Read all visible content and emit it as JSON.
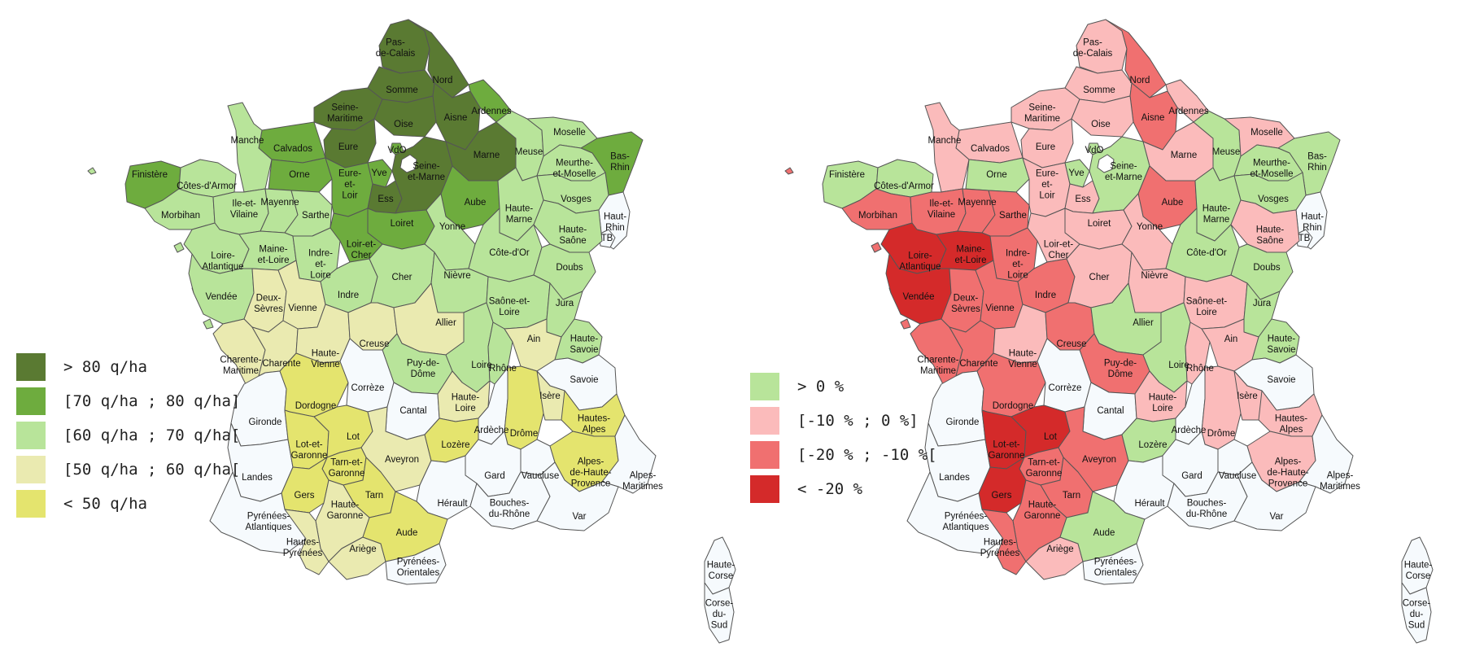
{
  "maps": [
    {
      "id": "yield",
      "legend": [
        {
          "key": "c1",
          "label": "> 80 q/ha",
          "color": "#5a7a32"
        },
        {
          "key": "c2",
          "label": "[70 q/ha ; 80 q/ha]",
          "color": "#6eac3e"
        },
        {
          "key": "c3",
          "label": "[60 q/ha ; 70 q/ha[",
          "color": "#b8e49a"
        },
        {
          "key": "c4",
          "label": "[50 q/ha ; 60 q/ha[",
          "color": "#eaeab0"
        },
        {
          "key": "c5",
          "label": "< 50 q/ha",
          "color": "#e4e46e"
        }
      ],
      "no_data_color": "#f6fafd"
    },
    {
      "id": "change",
      "legend": [
        {
          "key": "c1",
          "label": "> 0 %",
          "color": "#b8e49a"
        },
        {
          "key": "c2",
          "label": "[-10 % ; 0 %]",
          "color": "#fbbbbb"
        },
        {
          "key": "c3",
          "label": "[-20 % ; -10 %[",
          "color": "#f07070"
        },
        {
          "key": "c4",
          "label": "< -20 %",
          "color": "#d42a2a"
        }
      ],
      "no_data_color": "#f6fafd"
    }
  ],
  "departments": [
    {
      "id": "pdc",
      "name": [
        "Pas-",
        "de-Calais"
      ],
      "a": "c1",
      "b": "c2"
    },
    {
      "id": "nord",
      "name": [
        "Nord"
      ],
      "a": "c1",
      "b": "c3"
    },
    {
      "id": "somme",
      "name": [
        "Somme"
      ],
      "a": "c1",
      "b": "c2"
    },
    {
      "id": "aisne",
      "name": [
        "Aisne"
      ],
      "a": "c1",
      "b": "c3"
    },
    {
      "id": "ardennes",
      "name": [
        "Ardennes"
      ],
      "a": "c2",
      "b": "c2"
    },
    {
      "id": "seinemar",
      "name": [
        "Seine-",
        "Maritime"
      ],
      "a": "c1",
      "b": "c2"
    },
    {
      "id": "oise",
      "name": [
        "Oise"
      ],
      "a": "c1",
      "b": "c2"
    },
    {
      "id": "eure",
      "name": [
        "Eure"
      ],
      "a": "c1",
      "b": "c2"
    },
    {
      "id": "calvados",
      "name": [
        "Calvados"
      ],
      "a": "c2",
      "b": "c2"
    },
    {
      "id": "manche",
      "name": [
        "Manche"
      ],
      "a": "c3",
      "b": "c2"
    },
    {
      "id": "orne",
      "name": [
        "Orne"
      ],
      "a": "c2",
      "b": "c1"
    },
    {
      "id": "marne",
      "name": [
        "Marne"
      ],
      "a": "c1",
      "b": "c2"
    },
    {
      "id": "meuse",
      "name": [
        "Meuse"
      ],
      "a": "c3",
      "b": "c1"
    },
    {
      "id": "moselle",
      "name": [
        "Moselle"
      ],
      "a": "c3",
      "b": "c2"
    },
    {
      "id": "basrhin",
      "name": [
        "Bas-",
        "Rhin"
      ],
      "a": "c2",
      "b": "c1"
    },
    {
      "id": "mm",
      "name": [
        "Meurthe-",
        "et-Moselle"
      ],
      "a": "c3",
      "b": "c1"
    },
    {
      "id": "vosges",
      "name": [
        "Vosges"
      ],
      "a": "c3",
      "b": "c1"
    },
    {
      "id": "hautrhin",
      "name": [
        "Haut-",
        "Rhin"
      ],
      "a": "nd",
      "b": "nd"
    },
    {
      "id": "tb",
      "name": [
        "TB"
      ],
      "a": "nd",
      "b": "nd"
    },
    {
      "id": "finistere",
      "name": [
        "Finistère"
      ],
      "a": "c2",
      "b": "c1"
    },
    {
      "id": "cotes",
      "name": [
        "Côtes-d'Armor"
      ],
      "a": "c3",
      "b": "c1"
    },
    {
      "id": "morbihan",
      "name": [
        "Morbihan"
      ],
      "a": "c3",
      "b": "c3"
    },
    {
      "id": "ille",
      "name": [
        "Ile-et-",
        "Vilaine"
      ],
      "a": "c3",
      "b": "c3"
    },
    {
      "id": "mayenne",
      "name": [
        "Mayenne"
      ],
      "a": "c3",
      "b": "c3"
    },
    {
      "id": "sarthe",
      "name": [
        "Sarthe"
      ],
      "a": "c3",
      "b": "c3"
    },
    {
      "id": "eureloir",
      "name": [
        "Eure-",
        "et-",
        "Loir"
      ],
      "a": "c2",
      "b": "c2"
    },
    {
      "id": "yve",
      "name": [
        "Yve"
      ],
      "a": "c2",
      "b": "c1"
    },
    {
      "id": "vdo",
      "name": [
        "VdO"
      ],
      "a": "c2",
      "b": "c1"
    },
    {
      "id": "ess",
      "name": [
        "Ess"
      ],
      "a": "c1",
      "b": "c2"
    },
    {
      "id": "sem",
      "name": [
        "Seine-",
        "et-Marne"
      ],
      "a": "c1",
      "b": "c1"
    },
    {
      "id": "aube",
      "name": [
        "Aube"
      ],
      "a": "c2",
      "b": "c3"
    },
    {
      "id": "hmarne",
      "name": [
        "Haute-",
        "Marne"
      ],
      "a": "c3",
      "b": "c1"
    },
    {
      "id": "hsaone",
      "name": [
        "Haute-",
        "Saône"
      ],
      "a": "c3",
      "b": "c2"
    },
    {
      "id": "loireatl",
      "name": [
        "Loire-",
        "Atlantique"
      ],
      "a": "c3",
      "b": "c4"
    },
    {
      "id": "mel",
      "name": [
        "Maine-",
        "et-Loire"
      ],
      "a": "c3",
      "b": "c4"
    },
    {
      "id": "il",
      "name": [
        "Indre-",
        "et-",
        "Loire"
      ],
      "a": "c3",
      "b": "c3"
    },
    {
      "id": "loiret",
      "name": [
        "Loiret"
      ],
      "a": "c2",
      "b": "c2"
    },
    {
      "id": "lec",
      "name": [
        "Loir-et-",
        "Cher"
      ],
      "a": "c2",
      "b": "c2"
    },
    {
      "id": "yonne",
      "name": [
        "Yonne"
      ],
      "a": "c3",
      "b": "c2"
    },
    {
      "id": "cotedor",
      "name": [
        "Côte-d'Or"
      ],
      "a": "c3",
      "b": "c1"
    },
    {
      "id": "doubs",
      "name": [
        "Doubs"
      ],
      "a": "c3",
      "b": "c1"
    },
    {
      "id": "vendee",
      "name": [
        "Vendée"
      ],
      "a": "c3",
      "b": "c4"
    },
    {
      "id": "deuxsev",
      "name": [
        "Deux-",
        "Sèvres"
      ],
      "a": "c4",
      "b": "c3"
    },
    {
      "id": "vienne",
      "name": [
        "Vienne"
      ],
      "a": "c4",
      "b": "c3"
    },
    {
      "id": "indre",
      "name": [
        "Indre"
      ],
      "a": "c3",
      "b": "c3"
    },
    {
      "id": "cher",
      "name": [
        "Cher"
      ],
      "a": "c3",
      "b": "c2"
    },
    {
      "id": "nievre",
      "name": [
        "Nièvre"
      ],
      "a": "c3",
      "b": "c2"
    },
    {
      "id": "sel",
      "name": [
        "Saône-et-",
        "Loire"
      ],
      "a": "c3",
      "b": "c2"
    },
    {
      "id": "jura",
      "name": [
        "Jura"
      ],
      "a": "c3",
      "b": "c1"
    },
    {
      "id": "charmar",
      "name": [
        "Charente-",
        "Maritime"
      ],
      "a": "c4",
      "b": "c3"
    },
    {
      "id": "charente",
      "name": [
        "Charente"
      ],
      "a": "c4",
      "b": "c3"
    },
    {
      "id": "hvienne",
      "name": [
        "Haute-",
        "Vienne"
      ],
      "a": "c4",
      "b": "c2"
    },
    {
      "id": "creuse",
      "name": [
        "Creuse"
      ],
      "a": "c4",
      "b": "c3"
    },
    {
      "id": "allier",
      "name": [
        "Allier"
      ],
      "a": "c4",
      "b": "c1"
    },
    {
      "id": "pdd",
      "name": [
        "Puy-de-",
        "Dôme"
      ],
      "a": "c3",
      "b": "c3"
    },
    {
      "id": "loire",
      "name": [
        "Loire"
      ],
      "a": "c3",
      "b": "c1"
    },
    {
      "id": "rhone",
      "name": [
        "Rhône"
      ],
      "a": "c3",
      "b": "c2"
    },
    {
      "id": "ain",
      "name": [
        "Ain"
      ],
      "a": "c4",
      "b": "c2"
    },
    {
      "id": "hsavoie",
      "name": [
        "Haute-",
        "Savoie"
      ],
      "a": "c3",
      "b": "c1"
    },
    {
      "id": "savoie",
      "name": [
        "Savoie"
      ],
      "a": "nd",
      "b": "nd"
    },
    {
      "id": "gironde",
      "name": [
        "Gironde"
      ],
      "a": "nd",
      "b": "nd"
    },
    {
      "id": "dordogne",
      "name": [
        "Dordogne"
      ],
      "a": "c5",
      "b": "c3"
    },
    {
      "id": "correze",
      "name": [
        "Corrèze"
      ],
      "a": "nd",
      "b": "nd"
    },
    {
      "id": "cantal",
      "name": [
        "Cantal"
      ],
      "a": "nd",
      "b": "nd"
    },
    {
      "id": "hloire",
      "name": [
        "Haute-",
        "Loire"
      ],
      "a": "c4",
      "b": "c2"
    },
    {
      "id": "ardeche",
      "name": [
        "Ardèche"
      ],
      "a": "nd",
      "b": "nd"
    },
    {
      "id": "drome",
      "name": [
        "Drôme"
      ],
      "a": "c5",
      "b": "c2"
    },
    {
      "id": "isere",
      "name": [
        "Isère"
      ],
      "a": "c4",
      "b": "c2"
    },
    {
      "id": "halpes",
      "name": [
        "Hautes-",
        "Alpes"
      ],
      "a": "c5",
      "b": "c2"
    },
    {
      "id": "landes",
      "name": [
        "Landes"
      ],
      "a": "nd",
      "b": "nd"
    },
    {
      "id": "lotgar",
      "name": [
        "Lot-et-",
        "Garonne"
      ],
      "a": "c5",
      "b": "c4"
    },
    {
      "id": "lot",
      "name": [
        "Lot"
      ],
      "a": "c5",
      "b": "c4"
    },
    {
      "id": "aveyron",
      "name": [
        "Aveyron"
      ],
      "a": "c4",
      "b": "c3"
    },
    {
      "id": "lozere",
      "name": [
        "Lozère"
      ],
      "a": "c5",
      "b": "c1"
    },
    {
      "id": "tarngar",
      "name": [
        "Tarn-et-",
        "Garonne"
      ],
      "a": "c5",
      "b": "c3"
    },
    {
      "id": "gers",
      "name": [
        "Gers"
      ],
      "a": "c5",
      "b": "c4"
    },
    {
      "id": "tarn",
      "name": [
        "Tarn"
      ],
      "a": "c5",
      "b": "c3"
    },
    {
      "id": "hgaronne",
      "name": [
        "Haute-",
        "Garonne"
      ],
      "a": "c4",
      "b": "c3"
    },
    {
      "id": "gard",
      "name": [
        "Gard"
      ],
      "a": "nd",
      "b": "nd"
    },
    {
      "id": "vaucluse",
      "name": [
        "Vaucluse"
      ],
      "a": "nd",
      "b": "nd"
    },
    {
      "id": "ahp",
      "name": [
        "Alpes-",
        "de-Haute-",
        "Provence"
      ],
      "a": "c5",
      "b": "c2"
    },
    {
      "id": "amar",
      "name": [
        "Alpes-",
        "Maritimes"
      ],
      "a": "nd",
      "b": "nd"
    },
    {
      "id": "herault",
      "name": [
        "Hérault"
      ],
      "a": "nd",
      "b": "nd"
    },
    {
      "id": "bdr",
      "name": [
        "Bouches-",
        "du-Rhône"
      ],
      "a": "nd",
      "b": "nd"
    },
    {
      "id": "var",
      "name": [
        "Var"
      ],
      "a": "nd",
      "b": "nd"
    },
    {
      "id": "pyratl",
      "name": [
        "Pyrénées-",
        "Atlantiques"
      ],
      "a": "nd",
      "b": "nd"
    },
    {
      "id": "hpyr",
      "name": [
        "Hautes-",
        "Pyrénées"
      ],
      "a": "c4",
      "b": "c3"
    },
    {
      "id": "ariege",
      "name": [
        "Ariège"
      ],
      "a": "c4",
      "b": "c2"
    },
    {
      "id": "aude",
      "name": [
        "Aude"
      ],
      "a": "c5",
      "b": "c1"
    },
    {
      "id": "pyror",
      "name": [
        "Pyrénées-",
        "Orientales"
      ],
      "a": "nd",
      "b": "nd"
    },
    {
      "id": "hcorse",
      "name": [
        "Haute-",
        "Corse"
      ],
      "a": "nd",
      "b": "nd"
    },
    {
      "id": "csud",
      "name": [
        "Corse-",
        "du-",
        "Sud"
      ],
      "a": "nd",
      "b": "nd"
    }
  ]
}
